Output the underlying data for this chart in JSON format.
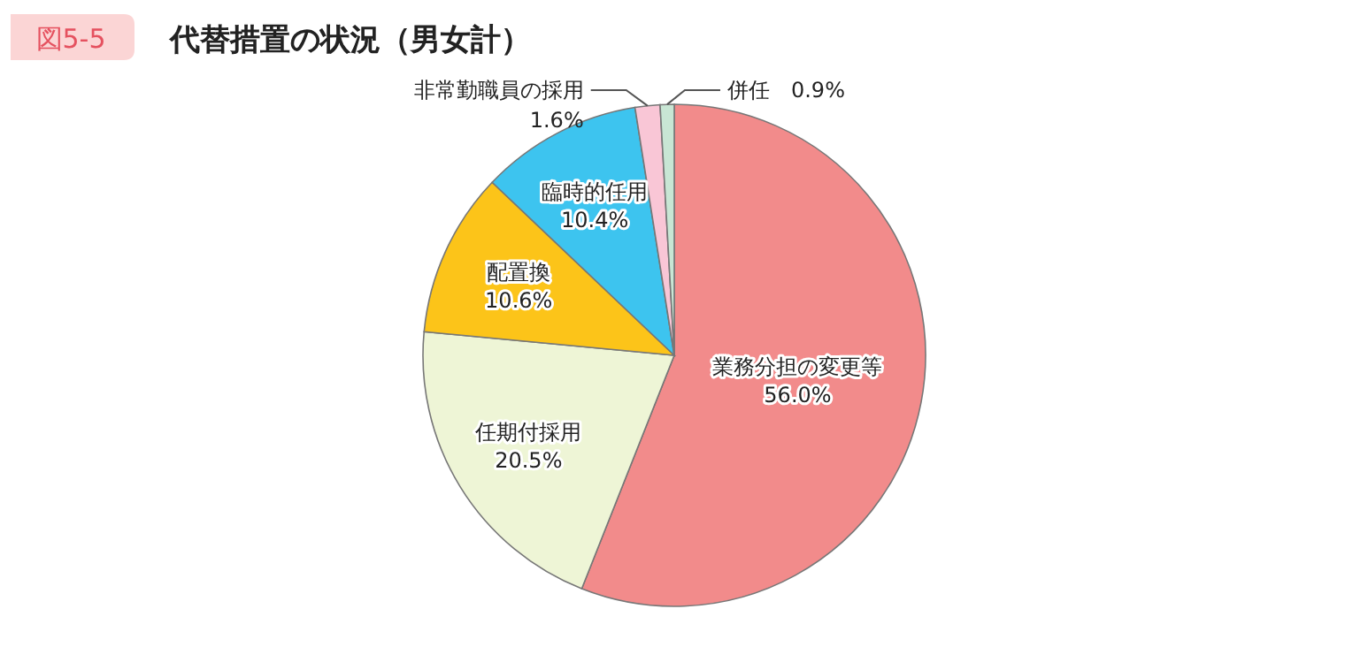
{
  "chart_data": {
    "type": "pie",
    "title": "代替措置の状況（男女計）",
    "annotations": [
      "図5-5"
    ],
    "categories": [
      "業務分担の変更等",
      "任期付採用",
      "配置換",
      "臨時的任用",
      "非常勤職員の採用",
      "併任"
    ],
    "values": [
      56.0,
      20.5,
      10.6,
      10.4,
      1.6,
      0.9
    ],
    "colors": [
      "#f28b8b",
      "#eef5d6",
      "#fcc419",
      "#3dc4ef",
      "#f9c6d6",
      "#c8e6d4"
    ],
    "value_labels": [
      "56.0%",
      "20.5%",
      "10.6%",
      "10.4%",
      "1.6%",
      "0.9%"
    ]
  }
}
